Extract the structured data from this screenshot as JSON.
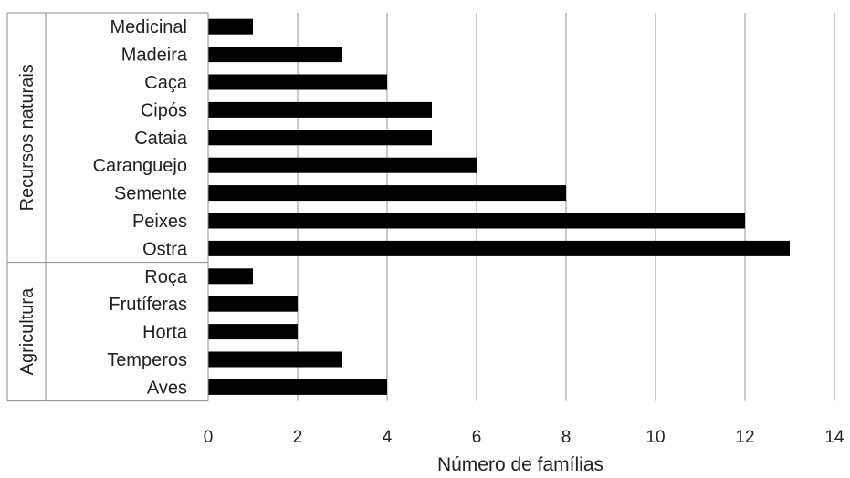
{
  "chart_data": {
    "type": "bar",
    "orientation": "horizontal",
    "xlabel": "Número de famílias",
    "xlim": [
      0,
      14
    ],
    "xticks": [
      0,
      2,
      4,
      6,
      8,
      10,
      12,
      14
    ],
    "grid": "vertical",
    "bar_color": "#000000",
    "groups": [
      {
        "name": "Recursos naturais",
        "categories": [
          "Medicinal",
          "Madeira",
          "Caça",
          "Cipós",
          "Cataia",
          "Caranguejo",
          "Semente",
          "Peixes",
          "Ostra"
        ],
        "values": [
          1,
          3,
          4,
          5,
          5,
          6,
          8,
          12,
          13
        ]
      },
      {
        "name": "Agricultura",
        "categories": [
          "Roça",
          "Frutíferas",
          "Horta",
          "Temperos",
          "Aves"
        ],
        "values": [
          1,
          2,
          2,
          3,
          4
        ]
      }
    ]
  }
}
